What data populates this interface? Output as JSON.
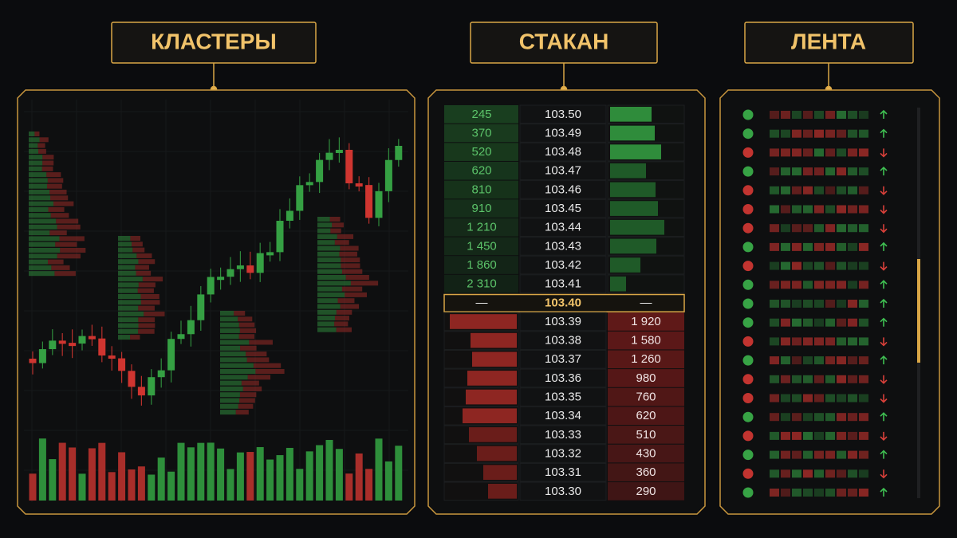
{
  "titles": {
    "clusters": "КЛАСТЕРЫ",
    "book": "СТАКАН",
    "tape": "ЛЕНТА"
  },
  "order_book": {
    "bids": [
      {
        "volume": "245",
        "price": "103.50"
      },
      {
        "volume": "370",
        "price": "103.49"
      },
      {
        "volume": "520",
        "price": "103.48"
      },
      {
        "volume": "620",
        "price": "103.47"
      },
      {
        "volume": "810",
        "price": "103.46"
      },
      {
        "volume": "910",
        "price": "103.45"
      },
      {
        "volume": "1 210",
        "price": "103.44"
      },
      {
        "volume": "1 450",
        "price": "103.43"
      },
      {
        "volume": "1 860",
        "price": "103.42"
      },
      {
        "volume": "2 310",
        "price": "103.41"
      }
    ],
    "mid": {
      "left": "—",
      "price": "103.40",
      "right": "—"
    },
    "asks": [
      {
        "price": "103.39",
        "volume": "1 920"
      },
      {
        "price": "103.38",
        "volume": "1 580"
      },
      {
        "price": "103.37",
        "volume": "1 260"
      },
      {
        "price": "103.36",
        "volume": "980"
      },
      {
        "price": "103.35",
        "volume": "760"
      },
      {
        "price": "103.34",
        "volume": "620"
      },
      {
        "price": "103.33",
        "volume": "510"
      },
      {
        "price": "103.32",
        "volume": "430"
      },
      {
        "price": "103.31",
        "volume": "360"
      },
      {
        "price": "103.30",
        "volume": "290"
      }
    ]
  }
}
